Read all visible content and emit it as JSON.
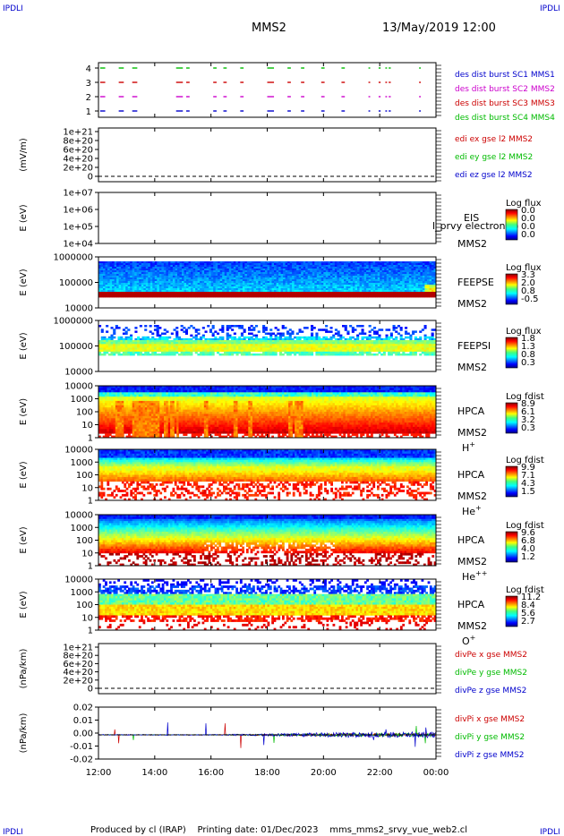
{
  "header": {
    "corner_left": "IPDLI",
    "corner_right": "IPDLI",
    "spacecraft": "MMS2",
    "datetime": "13/May/2019 12:00"
  },
  "footer": {
    "text": "Produced by cl (IRAP)    Printing date: 01/Dec/2023    mms_mms2_srvy_vue_web2.cl",
    "corner_left": "IPDLI",
    "corner_right": "IPDLI"
  },
  "x_axis": {
    "ticks": [
      "12:00",
      "14:00",
      "16:00",
      "18:00",
      "20:00",
      "22:00",
      "00:00"
    ]
  },
  "colors": {
    "blue": "#0000cc",
    "magenta": "#cc00cc",
    "red": "#cc0000",
    "green": "#00bb00"
  },
  "chart_data": [
    {
      "type": "scatter",
      "id": "burst",
      "yticks": [
        "1",
        "2",
        "3",
        "4"
      ],
      "legend": [
        {
          "text": "des dist burst SC1 MMS1",
          "color": "#0000cc"
        },
        {
          "text": "des dist burst SC2 MMS2",
          "color": "#cc00cc"
        },
        {
          "text": "des dist burst SC3 MMS3",
          "color": "#cc0000"
        },
        {
          "text": "des dist burst SC4 MMS4",
          "color": "#00bb00"
        }
      ]
    },
    {
      "type": "line",
      "id": "edi",
      "ylabel": "(mV/m)",
      "yticks": [
        "1e+21",
        "8e+20",
        "6e+20",
        "4e+20",
        "2e+20",
        "0"
      ],
      "legend": [
        {
          "text": "edi ex gse l2 MMS2",
          "color": "#cc0000"
        },
        {
          "text": "edi ey gse l2 MMS2",
          "color": "#00bb00"
        },
        {
          "text": "edi ez gse l2 MMS2",
          "color": "#0000cc"
        }
      ]
    },
    {
      "type": "heatmap",
      "id": "eis",
      "ylabel": "E (eV)",
      "yticks": [
        "1e+07",
        "1e+06",
        "1e+05",
        "1e+04"
      ],
      "labels": [
        "EIS",
        "MMS2"
      ],
      "overlay": "l_prvy electron to",
      "colorbar": {
        "title": "Log flux",
        "ticks": [
          "0.0",
          "0.0",
          "0.0",
          "0.0"
        ]
      }
    },
    {
      "type": "heatmap",
      "id": "feepse",
      "ylabel": "E (eV)",
      "yticks": [
        "1000000",
        "100000",
        "10000"
      ],
      "labels": [
        "FEEPSE",
        "MMS2"
      ],
      "colorbar": {
        "title": "Log flux",
        "ticks": [
          "3.3",
          "2.0",
          "0.8",
          "-0.5"
        ]
      }
    },
    {
      "type": "heatmap",
      "id": "feepsi",
      "ylabel": "E (eV)",
      "yticks": [
        "1000000",
        "100000",
        "10000"
      ],
      "labels": [
        "FEEPSI",
        "MMS2"
      ],
      "colorbar": {
        "title": "Log flux",
        "ticks": [
          "1.8",
          "1.3",
          "0.8",
          "0.3"
        ]
      }
    },
    {
      "type": "heatmap",
      "id": "hpca_h",
      "ylabel": "E (eV)",
      "yticks": [
        "10000",
        "1000",
        "100",
        "10",
        "1"
      ],
      "labels": [
        "HPCA",
        "MMS2"
      ],
      "species": "H",
      "charge": "+",
      "colorbar": {
        "title": "Log fdist",
        "ticks": [
          "8.9",
          "6.1",
          "3.2",
          "0.3"
        ]
      }
    },
    {
      "type": "heatmap",
      "id": "hpca_he",
      "ylabel": "E (eV)",
      "yticks": [
        "10000",
        "1000",
        "100",
        "10",
        "1"
      ],
      "labels": [
        "HPCA",
        "MMS2"
      ],
      "species": "He",
      "charge": "+",
      "colorbar": {
        "title": "Log fdist",
        "ticks": [
          "9.9",
          "7.1",
          "4.3",
          "1.5"
        ]
      }
    },
    {
      "type": "heatmap",
      "id": "hpca_he2",
      "ylabel": "E (eV)",
      "yticks": [
        "10000",
        "1000",
        "100",
        "10",
        "1"
      ],
      "labels": [
        "HPCA",
        "MMS2"
      ],
      "species": "He",
      "charge": "++",
      "colorbar": {
        "title": "Log fdist",
        "ticks": [
          "9.6",
          "6.8",
          "4.0",
          "1.2"
        ]
      }
    },
    {
      "type": "heatmap",
      "id": "hpca_o",
      "ylabel": "E (eV)",
      "yticks": [
        "10000",
        "1000",
        "100",
        "10",
        "1"
      ],
      "labels": [
        "HPCA",
        "MMS2"
      ],
      "species": "O",
      "charge": "+",
      "colorbar": {
        "title": "Log fdist",
        "ticks": [
          "11.2",
          "8.4",
          "5.6",
          "2.7"
        ]
      }
    },
    {
      "type": "line",
      "id": "divpe",
      "ylabel": "(nPa/km)",
      "yticks": [
        "1e+21",
        "8e+20",
        "6e+20",
        "4e+20",
        "2e+20",
        "0"
      ],
      "legend": [
        {
          "text": "divPe x gse MMS2",
          "color": "#cc0000"
        },
        {
          "text": "divPe y gse MMS2",
          "color": "#00bb00"
        },
        {
          "text": "divPe z gse MMS2",
          "color": "#0000cc"
        }
      ]
    },
    {
      "type": "line",
      "id": "divpi",
      "ylabel": "(nPa/km)",
      "yticks": [
        "0.02",
        "0.01",
        "0.00",
        "-0.01",
        "-0.02"
      ],
      "legend": [
        {
          "text": "divPi x gse MMS2",
          "color": "#cc0000"
        },
        {
          "text": "divPi y gse MMS2",
          "color": "#00bb00"
        },
        {
          "text": "divPi z gse MMS2",
          "color": "#0000cc"
        }
      ]
    }
  ]
}
